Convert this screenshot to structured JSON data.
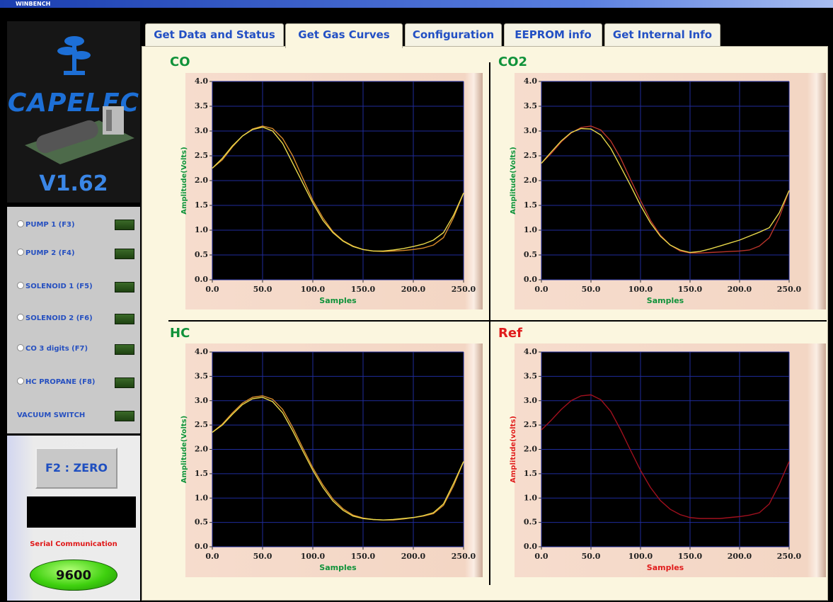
{
  "window": {
    "title": "WINBENCH"
  },
  "logo": {
    "brand": "CAPELEC",
    "version": "V1.62"
  },
  "tabs": [
    "Get Data and Status",
    "Get Gas Curves",
    "Configuration",
    "EEPROM info",
    "Get Internal Info"
  ],
  "controls": [
    "PUMP 1 (F3)",
    "PUMP 2 (F4)",
    "SOLENOID 1 (F5)",
    "SOLENOID 2 (F6)",
    "CO 3 digits (F7)",
    "HC PROPANE (F8)",
    "VACUUM SWITCH"
  ],
  "zero_button": "F2 : ZERO",
  "serial": {
    "label": "Serial Communication",
    "baud": 9600
  },
  "chart_data": [
    {
      "type": "line",
      "title": "CO",
      "label_color": "#10923a",
      "x_label": "Samples",
      "y_label": "Amplitude(Volts)",
      "x": [
        0,
        10,
        20,
        30,
        40,
        50,
        60,
        70,
        80,
        90,
        100,
        110,
        120,
        130,
        140,
        150,
        160,
        170,
        180,
        190,
        200,
        210,
        220,
        230,
        240,
        250
      ],
      "series": [
        {
          "color": "#d88a2a",
          "values": [
            2.25,
            2.42,
            2.68,
            2.9,
            3.04,
            3.1,
            3.05,
            2.85,
            2.5,
            2.05,
            1.6,
            1.25,
            0.97,
            0.79,
            0.68,
            0.61,
            0.58,
            0.57,
            0.58,
            0.59,
            0.61,
            0.64,
            0.7,
            0.85,
            1.25,
            1.75
          ]
        },
        {
          "color": "#e8d84a",
          "values": [
            2.25,
            2.45,
            2.7,
            2.9,
            3.03,
            3.08,
            3.0,
            2.75,
            2.35,
            1.95,
            1.55,
            1.2,
            0.95,
            0.78,
            0.67,
            0.61,
            0.58,
            0.58,
            0.6,
            0.63,
            0.67,
            0.72,
            0.8,
            0.95,
            1.3,
            1.75
          ]
        }
      ],
      "xlim": [
        0,
        250
      ],
      "ylim": [
        0,
        4
      ],
      "xticks": [
        {
          "value": 0,
          "label": "0.0"
        },
        {
          "value": 50,
          "label": "50.0"
        },
        {
          "value": 100,
          "label": "100.0"
        },
        {
          "value": 150,
          "label": "150.0"
        },
        {
          "value": 200,
          "label": "200.0"
        },
        {
          "value": 250,
          "label": "250.0"
        }
      ],
      "yticks": [
        {
          "value": 0,
          "label": "0.0"
        },
        {
          "value": 0.5,
          "label": "0.5"
        },
        {
          "value": 1,
          "label": "1.0"
        },
        {
          "value": 1.5,
          "label": "1.5"
        },
        {
          "value": 2,
          "label": "2.0"
        },
        {
          "value": 2.5,
          "label": "2.5"
        },
        {
          "value": 3,
          "label": "3.0"
        },
        {
          "value": 3.5,
          "label": "3.5"
        },
        {
          "value": 4,
          "label": "4.0"
        }
      ],
      "grid": true
    },
    {
      "type": "line",
      "title": "CO2",
      "label_color": "#10923a",
      "x_label": "Samples",
      "y_label": "Amplitude(Volts)",
      "x": [
        0,
        10,
        20,
        30,
        40,
        50,
        60,
        70,
        80,
        90,
        100,
        110,
        120,
        130,
        140,
        150,
        160,
        170,
        180,
        190,
        200,
        210,
        220,
        230,
        240,
        250
      ],
      "series": [
        {
          "color": "#b8342a",
          "values": [
            2.35,
            2.55,
            2.78,
            2.96,
            3.07,
            3.1,
            3.02,
            2.8,
            2.45,
            2.02,
            1.6,
            1.2,
            0.9,
            0.7,
            0.58,
            0.54,
            0.54,
            0.55,
            0.56,
            0.57,
            0.58,
            0.6,
            0.68,
            0.85,
            1.25,
            1.8
          ]
        },
        {
          "color": "#e8d84a",
          "values": [
            2.35,
            2.58,
            2.8,
            2.97,
            3.05,
            3.04,
            2.92,
            2.65,
            2.28,
            1.9,
            1.5,
            1.15,
            0.88,
            0.7,
            0.6,
            0.55,
            0.57,
            0.62,
            0.68,
            0.74,
            0.8,
            0.88,
            0.96,
            1.05,
            1.35,
            1.8
          ]
        }
      ],
      "xlim": [
        0,
        250
      ],
      "ylim": [
        0,
        4
      ],
      "xticks": [
        {
          "value": 0,
          "label": "0.0"
        },
        {
          "value": 50,
          "label": "50.0"
        },
        {
          "value": 100,
          "label": "100.0"
        },
        {
          "value": 150,
          "label": "150.0"
        },
        {
          "value": 200,
          "label": "200.0"
        },
        {
          "value": 250,
          "label": "250.0"
        }
      ],
      "yticks": [
        {
          "value": 0,
          "label": "0.0"
        },
        {
          "value": 0.5,
          "label": "0.5"
        },
        {
          "value": 1,
          "label": "1.0"
        },
        {
          "value": 1.5,
          "label": "1.5"
        },
        {
          "value": 2,
          "label": "2.0"
        },
        {
          "value": 2.5,
          "label": "2.5"
        },
        {
          "value": 3,
          "label": "3.0"
        },
        {
          "value": 3.5,
          "label": "3.5"
        },
        {
          "value": 4,
          "label": "4.0"
        }
      ],
      "grid": true
    },
    {
      "type": "line",
      "title": "HC",
      "label_color": "#10923a",
      "x_label": "Samples",
      "y_label": "Amplitude(Volts)",
      "x": [
        0,
        10,
        20,
        30,
        40,
        50,
        60,
        70,
        80,
        90,
        100,
        110,
        120,
        130,
        140,
        150,
        160,
        170,
        180,
        190,
        200,
        210,
        220,
        230,
        240,
        250
      ],
      "series": [
        {
          "color": "#d88a2a",
          "values": [
            2.35,
            2.52,
            2.75,
            2.95,
            3.07,
            3.1,
            3.03,
            2.82,
            2.45,
            2.03,
            1.62,
            1.27,
            0.98,
            0.78,
            0.65,
            0.59,
            0.56,
            0.55,
            0.55,
            0.57,
            0.6,
            0.63,
            0.68,
            0.85,
            1.25,
            1.75
          ]
        },
        {
          "color": "#e8d84a",
          "values": [
            2.35,
            2.5,
            2.72,
            2.92,
            3.04,
            3.07,
            2.98,
            2.75,
            2.38,
            1.97,
            1.57,
            1.22,
            0.94,
            0.75,
            0.63,
            0.58,
            0.56,
            0.55,
            0.56,
            0.58,
            0.6,
            0.64,
            0.7,
            0.88,
            1.3,
            1.75
          ]
        }
      ],
      "xlim": [
        0,
        250
      ],
      "ylim": [
        0,
        4
      ],
      "xticks": [
        {
          "value": 0,
          "label": "0.0"
        },
        {
          "value": 50,
          "label": "50.0"
        },
        {
          "value": 100,
          "label": "100.0"
        },
        {
          "value": 150,
          "label": "150.0"
        },
        {
          "value": 200,
          "label": "200.0"
        },
        {
          "value": 250,
          "label": "250.0"
        }
      ],
      "yticks": [
        {
          "value": 0,
          "label": "0.0"
        },
        {
          "value": 0.5,
          "label": "0.5"
        },
        {
          "value": 1,
          "label": "1.0"
        },
        {
          "value": 1.5,
          "label": "1.5"
        },
        {
          "value": 2,
          "label": "2.0"
        },
        {
          "value": 2.5,
          "label": "2.5"
        },
        {
          "value": 3,
          "label": "3.0"
        },
        {
          "value": 3.5,
          "label": "3.5"
        },
        {
          "value": 4,
          "label": "4.0"
        }
      ],
      "grid": true
    },
    {
      "type": "line",
      "title": "Ref",
      "label_color": "#e01c1c",
      "x_label": "Samples",
      "y_label": "Amplitude(volts)",
      "x": [
        0,
        10,
        20,
        30,
        40,
        50,
        60,
        70,
        80,
        90,
        100,
        110,
        120,
        130,
        140,
        150,
        160,
        170,
        180,
        190,
        200,
        210,
        220,
        230,
        240,
        250
      ],
      "series": [
        {
          "color": "#a0101e",
          "values": [
            2.4,
            2.6,
            2.82,
            3.0,
            3.1,
            3.12,
            3.02,
            2.78,
            2.4,
            1.98,
            1.57,
            1.22,
            0.95,
            0.77,
            0.66,
            0.6,
            0.58,
            0.58,
            0.58,
            0.6,
            0.62,
            0.65,
            0.7,
            0.88,
            1.28,
            1.75
          ]
        }
      ],
      "xlim": [
        0,
        250
      ],
      "ylim": [
        0,
        4
      ],
      "xticks": [
        {
          "value": 0,
          "label": "0.0"
        },
        {
          "value": 50,
          "label": "50.0"
        },
        {
          "value": 100,
          "label": "100.0"
        },
        {
          "value": 150,
          "label": "150.0"
        },
        {
          "value": 200,
          "label": "200.0"
        },
        {
          "value": 250,
          "label": "250.0"
        }
      ],
      "yticks": [
        {
          "value": 0,
          "label": "0.0"
        },
        {
          "value": 0.5,
          "label": "0.5"
        },
        {
          "value": 1,
          "label": "1.0"
        },
        {
          "value": 1.5,
          "label": "1.5"
        },
        {
          "value": 2,
          "label": "2.0"
        },
        {
          "value": 2.5,
          "label": "2.5"
        },
        {
          "value": 3,
          "label": "3.0"
        },
        {
          "value": 3.5,
          "label": "3.5"
        },
        {
          "value": 4,
          "label": "4.0"
        }
      ],
      "grid": true
    }
  ]
}
